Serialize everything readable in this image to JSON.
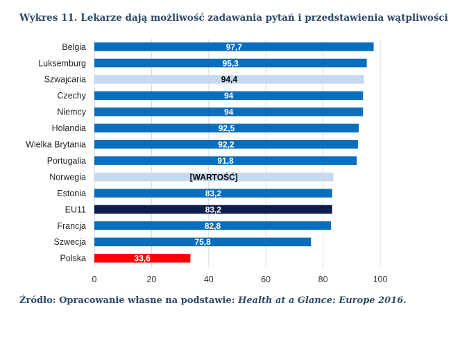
{
  "title": "Wykres 11. Lekarze dają możliwość zadawania pytań i przedstawienia wątpliwości",
  "source": {
    "prefix": "Źródło: Opracowanie własne na podstawie: ",
    "publication": "Health at a Glance: Europe 2016",
    "suffix": "."
  },
  "colors": {
    "standard": "#0a6ebd",
    "highlight_light": "#c5d9f1",
    "eu": "#0b1f4f",
    "poland": "#ff0000",
    "grid": "#d9d9d9",
    "title": "#2e4a6b"
  },
  "chart_data": {
    "type": "bar",
    "orientation": "horizontal",
    "categories": [
      "Belgia",
      "Luksemburg",
      "Szwajcaria",
      "Czechy",
      "Niemcy",
      "Holandia",
      "Wielka Brytania",
      "Portugalia",
      "Norwegia",
      "Estonia",
      "EU11",
      "Francja",
      "Szwecja",
      "Polska"
    ],
    "values": [
      97.7,
      95.3,
      94.4,
      94,
      94,
      92.5,
      92.2,
      91.8,
      83.6,
      83.2,
      83.2,
      82.8,
      75.8,
      33.6
    ],
    "labels": [
      "97,7",
      "95,3",
      "94,4",
      "94",
      "94",
      "92,5",
      "92,2",
      "91,8",
      "[WARTOŚĆ]",
      "83,2",
      "83,2",
      "82,8",
      "75,8",
      "33,6"
    ],
    "bar_colors": [
      "standard",
      "standard",
      "highlight_light",
      "standard",
      "standard",
      "standard",
      "standard",
      "standard",
      "highlight_light",
      "standard",
      "eu",
      "standard",
      "standard",
      "poland"
    ],
    "xlim": [
      0,
      100
    ],
    "xticks": [
      0,
      20,
      40,
      60,
      80,
      100
    ],
    "xtick_labels": [
      "0",
      "20",
      "40",
      "60",
      "80",
      "100"
    ],
    "grid": "vertical",
    "legend": "none"
  }
}
